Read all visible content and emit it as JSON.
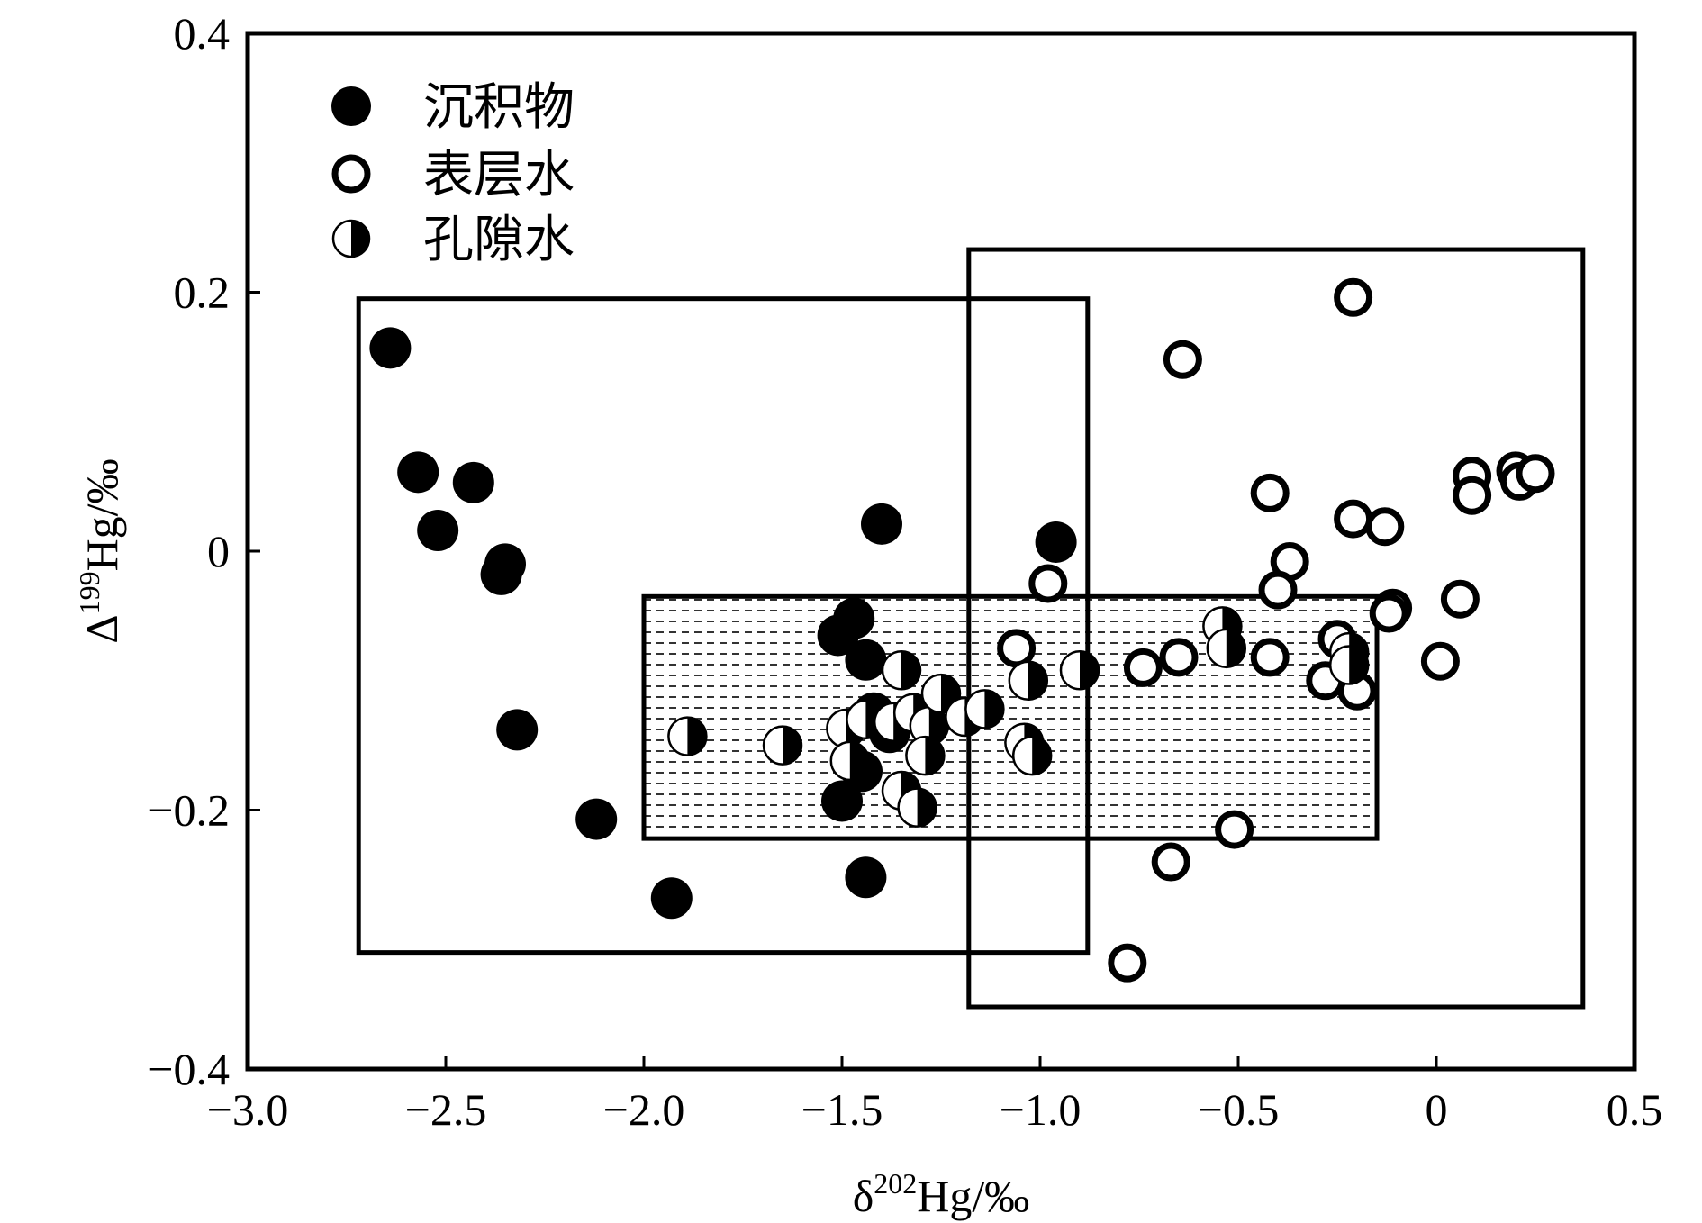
{
  "chart_data": {
    "type": "scatter",
    "title": "",
    "xlabel": {
      "prefix": "δ",
      "sup": "202",
      "suffix": "Hg/‰"
    },
    "ylabel": {
      "prefix": "Δ",
      "sup": "199",
      "suffix": "Hg/‰"
    },
    "xlim": [
      -3.0,
      0.5
    ],
    "ylim": [
      -0.4,
      0.4
    ],
    "x_ticks": [
      {
        "value": -3.0,
        "label": "−3.0"
      },
      {
        "value": -2.5,
        "label": "−2.5"
      },
      {
        "value": -2.0,
        "label": "−2.0"
      },
      {
        "value": -1.5,
        "label": "−1.5"
      },
      {
        "value": -1.0,
        "label": "−1.0"
      },
      {
        "value": -0.5,
        "label": "−0.5"
      },
      {
        "value": 0,
        "label": "0"
      },
      {
        "value": 0.5,
        "label": "0.5"
      }
    ],
    "y_ticks": [
      {
        "value": -0.4,
        "label": "−0.4"
      },
      {
        "value": -0.2,
        "label": "−0.2"
      },
      {
        "value": 0,
        "label": "0"
      },
      {
        "value": 0.2,
        "label": "0.2"
      },
      {
        "value": 0.4,
        "label": "0.4"
      }
    ],
    "grid": false,
    "legend_position": "top-left",
    "regions": [
      {
        "kind": "sediment",
        "x": [
          -2.72,
          -0.88
        ],
        "y": [
          -0.31,
          0.195
        ],
        "fill": "none"
      },
      {
        "kind": "surface-water",
        "x": [
          -1.18,
          0.37
        ],
        "y": [
          -0.352,
          0.233
        ],
        "fill": "none"
      },
      {
        "kind": "pore-water",
        "x": [
          -2.0,
          -0.15
        ],
        "y": [
          -0.222,
          -0.035
        ],
        "fill": "dashed-hatch"
      }
    ],
    "series": [
      {
        "name": "沉积物",
        "marker": "filled",
        "points": [
          [
            -2.64,
            0.157
          ],
          [
            -2.57,
            0.061
          ],
          [
            -2.43,
            0.053
          ],
          [
            -2.52,
            0.016
          ],
          [
            -2.35,
            -0.01
          ],
          [
            -2.36,
            -0.018
          ],
          [
            -2.32,
            -0.138
          ],
          [
            -2.12,
            -0.207
          ],
          [
            -1.93,
            -0.268
          ],
          [
            -1.4,
            0.021
          ],
          [
            -0.96,
            0.007
          ],
          [
            -1.47,
            -0.052
          ],
          [
            -1.51,
            -0.065
          ],
          [
            -1.44,
            -0.084
          ],
          [
            -1.42,
            -0.125
          ],
          [
            -1.38,
            -0.14
          ],
          [
            -1.45,
            -0.17
          ],
          [
            -1.5,
            -0.193
          ],
          [
            -1.44,
            -0.252
          ]
        ]
      },
      {
        "name": "表层水",
        "marker": "open",
        "points": [
          [
            -0.21,
            0.196
          ],
          [
            -0.64,
            0.148
          ],
          [
            -0.42,
            0.045
          ],
          [
            -0.21,
            0.025
          ],
          [
            -0.13,
            0.019
          ],
          [
            -0.37,
            -0.008
          ],
          [
            -0.4,
            -0.03
          ],
          [
            -0.98,
            -0.025
          ],
          [
            -0.11,
            -0.044
          ],
          [
            -0.12,
            -0.048
          ],
          [
            0.06,
            -0.037
          ],
          [
            0.09,
            0.058
          ],
          [
            0.09,
            0.043
          ],
          [
            0.2,
            0.062
          ],
          [
            0.21,
            0.054
          ],
          [
            0.25,
            0.06
          ],
          [
            0.01,
            -0.085
          ],
          [
            -1.06,
            -0.075
          ],
          [
            -0.74,
            -0.09
          ],
          [
            -0.65,
            -0.082
          ],
          [
            -0.42,
            -0.082
          ],
          [
            -0.25,
            -0.068
          ],
          [
            -0.28,
            -0.1
          ],
          [
            -0.2,
            -0.108
          ],
          [
            -0.51,
            -0.215
          ],
          [
            -0.67,
            -0.24
          ],
          [
            -0.78,
            -0.318
          ]
        ]
      },
      {
        "name": "孔隙水",
        "marker": "half",
        "points": [
          [
            -1.89,
            -0.143
          ],
          [
            -1.65,
            -0.15
          ],
          [
            -1.49,
            -0.137
          ],
          [
            -1.48,
            -0.162
          ],
          [
            -1.44,
            -0.13
          ],
          [
            -1.37,
            -0.132
          ],
          [
            -1.35,
            -0.092
          ],
          [
            -1.32,
            -0.125
          ],
          [
            -1.28,
            -0.135
          ],
          [
            -1.29,
            -0.158
          ],
          [
            -1.25,
            -0.11
          ],
          [
            -1.35,
            -0.185
          ],
          [
            -1.31,
            -0.198
          ],
          [
            -1.19,
            -0.128
          ],
          [
            -1.14,
            -0.122
          ],
          [
            -1.04,
            -0.148
          ],
          [
            -1.02,
            -0.158
          ],
          [
            -1.03,
            -0.1
          ],
          [
            -0.9,
            -0.092
          ],
          [
            -0.54,
            -0.058
          ],
          [
            -0.53,
            -0.075
          ],
          [
            -0.22,
            -0.078
          ],
          [
            -0.22,
            -0.088
          ]
        ]
      }
    ]
  }
}
